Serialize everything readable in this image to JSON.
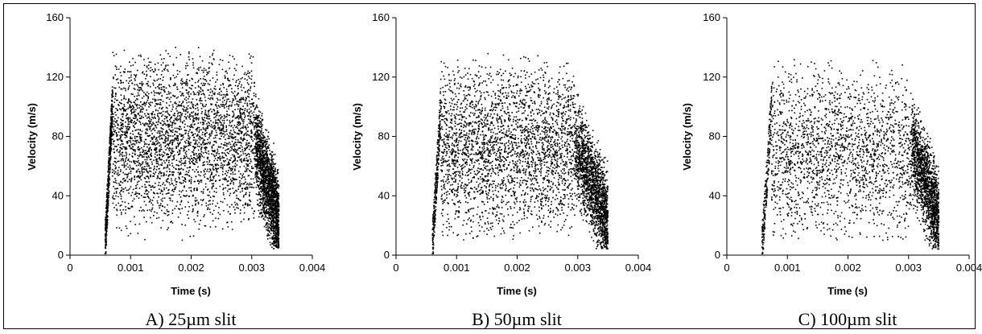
{
  "chart_data": [
    {
      "type": "scatter",
      "caption": "A) 25µm slit",
      "xlabel": "Time (s)",
      "ylabel": "Velocity (m/s)",
      "xlim": [
        0,
        0.004
      ],
      "ylim": [
        0,
        160
      ],
      "xticks": [
        "0",
        "0.001",
        "0.002",
        "0.003",
        "0.004"
      ],
      "yticks": [
        "0",
        "40",
        "80",
        "120",
        "160"
      ],
      "color": "#000000",
      "point_count": 5600
    },
    {
      "type": "scatter",
      "caption": "B) 50µm slit",
      "xlabel": "Time (s)",
      "ylabel": "Velocity (m/s)",
      "xlim": [
        0,
        0.004
      ],
      "ylim": [
        0,
        160
      ],
      "xticks": [
        "0",
        "0.001",
        "0.002",
        "0.003",
        "0.004"
      ],
      "yticks": [
        "0",
        "40",
        "80",
        "120",
        "160"
      ],
      "color": "#000000",
      "point_count": 4800
    },
    {
      "type": "scatter",
      "caption": "C) 100µm slit",
      "xlabel": "Time (s)",
      "ylabel": "Velocity (m/s)",
      "xlim": [
        0,
        0.004
      ],
      "ylim": [
        0,
        160
      ],
      "xticks": [
        "0",
        "0.001",
        "0.002",
        "0.003",
        "0.004"
      ],
      "yticks": [
        "0",
        "40",
        "80",
        "120",
        "160"
      ],
      "color": "#000000",
      "point_count": 3800
    }
  ]
}
